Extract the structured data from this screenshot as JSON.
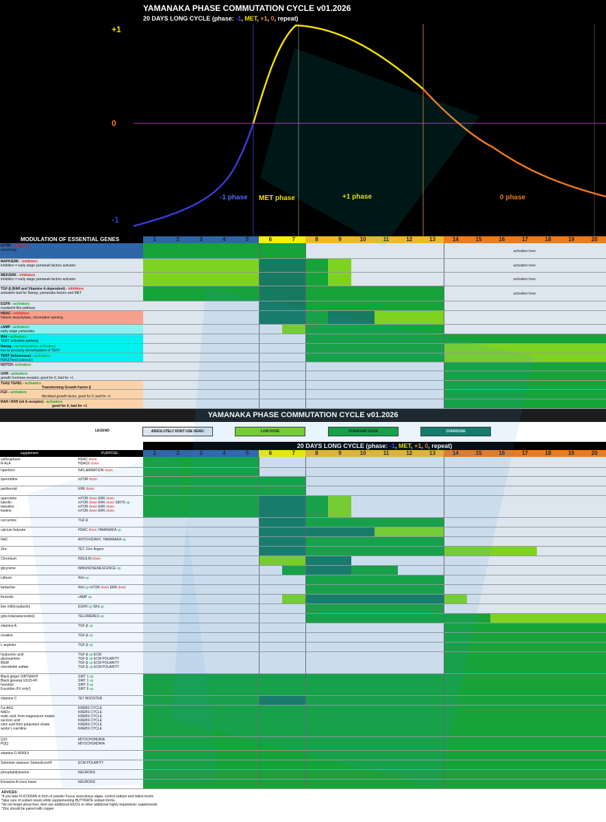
{
  "chart": {
    "title": "YAMANAKA PHASE COMMUTATION CYCLE v01.2026",
    "subtitle_pre": "20 DAYS LONG CYCLE (phase: ",
    "subtitle_p1": "-1",
    "subtitle_sep1": ", ",
    "subtitle_p2": "MET",
    "subtitle_sep2": ", ",
    "subtitle_p3": "+1",
    "subtitle_sep3": ", ",
    "subtitle_p4": "0",
    "subtitle_post": ", repeat)",
    "y_top": "+1",
    "y_mid": "0",
    "y_bottom": "-1",
    "phase_minus": "-1 phase",
    "phase_met": "MET phase",
    "phase_plus": "+1 phase",
    "phase_zero": "0 phase",
    "colors": {
      "minus": "#3b3bd6",
      "met": "#f6e000",
      "plus": "#f2a020",
      "zero": "#f07820"
    }
  },
  "genes": {
    "header": "MODULATION OF ESSENTIAL GENES",
    "days": [
      "1",
      "2",
      "3",
      "4",
      "5",
      "6",
      "7",
      "8",
      "9",
      "10",
      "11",
      "12",
      "13",
      "14",
      "15",
      "16",
      "17",
      "18",
      "19",
      "20"
    ],
    "rows": [
      {
        "n1": "mTOR - ",
        "n2": "inhibitors",
        "c": "r",
        "desc": "autophagy",
        "bg": "#2e66a8",
        "note": "activation here"
      },
      {
        "n1": "MAPK/ERK - ",
        "n2": "inhibitors",
        "c": "r",
        "desc": "inhibition = early stage yamanaki factors activator",
        "bg": "#dde6ee",
        "note": "activation here"
      },
      {
        "n1": "MEK/ERK - ",
        "n2": "inhibitors",
        "c": "r",
        "desc": "inhibition = early stage yamanaki factors activator",
        "bg": "#dde6ee",
        "note": "activation here"
      },
      {
        "n1": "TGF-β (RAR and Vitamine A dependent) - ",
        "n2": "inhibitors",
        "c": "r",
        "desc": "activation bad for Nanog, yamanaka factors and MET",
        "bg": "#dde6ee",
        "note": "activation here"
      },
      {
        "n1": "EGFR - ",
        "n2": "activators",
        "c": "g",
        "desc": "royalactin-like pathway",
        "bg": "#dde6ee",
        "note": ""
      },
      {
        "n1": "HDAC - ",
        "n2": "inhibitors",
        "c": "r",
        "desc": "histone deacetylase, chromatine opening",
        "bg": "#f7a08c",
        "note": ""
      },
      {
        "n1": "cAMP - ",
        "n2": "activators",
        "c": "g",
        "desc": "early stage yamanaka",
        "bg": "#8ef0f0",
        "note": ""
      },
      {
        "n1": "Wnt - ",
        "n2": "activators",
        "c": "g",
        "desc": "TERT activation pathway",
        "bg": "#00f0f0",
        "note": ""
      },
      {
        "n1": "Nanog - ",
        "n2": "demethylation, activators",
        "c": "g",
        "desc": "key to precisely demethylation of TERT",
        "bg": "#00f0f0",
        "note": ""
      },
      {
        "n1": "TERT (telomerase) - ",
        "n2": "activators",
        "c": "g",
        "desc": "H3K27me3 (silencer)",
        "bg": "#00f0f0",
        "note": ""
      },
      {
        "n1": "NOTCH- ",
        "n2": "activators",
        "c": "g",
        "desc": "",
        "bg": "#dde6ee",
        "note": ""
      },
      {
        "n1": "GHR - ",
        "n2": "activators",
        "c": "g",
        "desc": "growth hormone receptor, good for 0, bad for +1",
        "bg": "#dde6ee",
        "note": ""
      },
      {
        "n1": "TGFβ TGFB1 - ",
        "n2": "activators",
        "c": "g",
        "desc": "Transforming Growth Factor β",
        "bg": "#fcd3a8",
        "note": ""
      },
      {
        "n1": "FGF - ",
        "n2": "activators",
        "c": "g",
        "desc": "fibroblast growth factor, good for 0, bad for +1",
        "bg": "#fcd3a8",
        "note": ""
      },
      {
        "n1": "RAR i RXR (vit A receptor) - ",
        "n2": "activators",
        "c": "g",
        "desc": "good for 0, bad for +1",
        "bg": "#fcd3a8",
        "note": ""
      }
    ]
  },
  "section2": {
    "title": "YAMANAKA PHASE COMMUTATION CYCLE v01.2026",
    "legend_label": "LEGEND",
    "legend": [
      "ABSOLUTELY DONT USE HERE!",
      "LOW DOSE",
      "STANDARD DOSE",
      "OVERDOSE"
    ],
    "legend_colors": [
      "#dde6ee",
      "#7ed321",
      "#16a33a",
      "#167a60"
    ],
    "cycle_pre": "20 DAYS LONG CYCLE (phase: ",
    "cycle_p1": "-1",
    "cycle_p2": "MET",
    "cycle_p3": "+1",
    "cycle_p4": "0",
    "cycle_post": ", repeat)",
    "col_supp": "supplement",
    "col_purp": "PURPOSE",
    "supplements": [
      {
        "names": [
          "sulforaphane",
          "R-ALA"
        ],
        "purp": [
          [
            [
              "HDAC ",
              ""
            ],
            [
              "down",
              "r"
            ]
          ],
          [
            [
              "HDAC6 ",
              ""
            ],
            [
              "down",
              "r"
            ]
          ]
        ]
      },
      {
        "names": [
          "hiperforin"
        ],
        "purp": [
          [
            [
              "INFLAMMATION ",
              ""
            ],
            [
              "down",
              "r"
            ]
          ]
        ]
      },
      {
        "names": [
          "spermidine"
        ],
        "purp": [
          [
            [
              "mTOR ",
              ""
            ],
            [
              "down",
              "r"
            ]
          ]
        ]
      },
      {
        "names": [
          "parthenoid"
        ],
        "purp": [
          [
            [
              "ERK ",
              ""
            ],
            [
              "down",
              "r"
            ]
          ]
        ]
      },
      {
        "names": [
          "quercetine",
          "luteolin",
          "baicaline",
          "fisetine"
        ],
        "purp": [
          [
            [
              "mTOR ",
              ""
            ],
            [
              "down",
              "r"
            ],
            [
              " ERK ",
              ""
            ],
            [
              "down",
              "r"
            ]
          ],
          [
            [
              "mTOR ",
              ""
            ],
            [
              "down",
              "r"
            ],
            [
              " ERK ",
              ""
            ],
            [
              "down",
              "r"
            ],
            [
              " SIRT6 ",
              ""
            ],
            [
              "up",
              "g"
            ]
          ],
          [
            [
              "mTOR ",
              ""
            ],
            [
              "down",
              "r"
            ],
            [
              " ERK ",
              ""
            ],
            [
              "down",
              "r"
            ]
          ],
          [
            [
              "mTOR ",
              ""
            ],
            [
              "down",
              "r"
            ],
            [
              " ERK ",
              ""
            ],
            [
              "down",
              "r"
            ]
          ]
        ]
      },
      {
        "names": [
          "curcumine"
        ],
        "purp": [
          [
            [
              "TGF-β",
              ""
            ]
          ]
        ]
      },
      {
        "names": [
          "calcium butyrate"
        ],
        "purp": [
          [
            [
              "HDAC ",
              ""
            ],
            [
              "down",
              "r"
            ],
            [
              " YAMANAKA ",
              ""
            ],
            [
              "up",
              "g"
            ]
          ]
        ]
      },
      {
        "names": [
          "NAC"
        ],
        "purp": [
          [
            [
              "ANTIOXIDANT, YAMANAKA ",
              ""
            ],
            [
              "up",
              "g"
            ]
          ]
        ]
      },
      {
        "names": [
          "Zinc"
        ],
        "purp": [
          [
            [
              "TET, Zinc fingers",
              ""
            ]
          ]
        ]
      },
      {
        "names": [
          "Chromium"
        ],
        "purp": [
          [
            [
              "INSULIN ",
              ""
            ],
            [
              "down",
              "r"
            ]
          ]
        ]
      },
      {
        "names": [
          "glicyrizine"
        ],
        "purp": [
          [
            [
              "IMMUNOSENESCENCE ",
              ""
            ],
            [
              "up",
              "g"
            ]
          ]
        ]
      },
      {
        "names": [
          "Lithium"
        ],
        "purp": [
          [
            [
              "Wnt ",
              ""
            ],
            [
              "up",
              "g"
            ]
          ]
        ]
      },
      {
        "names": [
          "berberine"
        ],
        "purp": [
          [
            [
              "Wnt ",
              ""
            ],
            [
              "up",
              "g"
            ],
            [
              " mTOR ",
              ""
            ],
            [
              "down",
              "r"
            ],
            [
              " ERK ",
              ""
            ],
            [
              "down",
              "r"
            ]
          ]
        ]
      },
      {
        "names": [
          "forskolin"
        ],
        "purp": [
          [
            [
              "cAMP ",
              ""
            ],
            [
              "up",
              "g"
            ]
          ]
        ]
      },
      {
        "names": [
          "bee milk(royalactin)"
        ],
        "purp": [
          [
            [
              "EGFR ",
              ""
            ],
            [
              "up",
              "g"
            ],
            [
              " Wnt ",
              ""
            ],
            [
              "up",
              "g"
            ]
          ]
        ]
      },
      {
        "names": [
          "gotu kola(asiacosides)"
        ],
        "purp": [
          [
            [
              "TELOMERES ",
              ""
            ],
            [
              "up",
              "g"
            ]
          ]
        ]
      },
      {
        "names": [
          "vitamine A"
        ],
        "purp": [
          [
            [
              "TGF-β ",
              ""
            ],
            [
              "up",
              "g"
            ]
          ]
        ]
      },
      {
        "names": [
          "creatine"
        ],
        "purp": [
          [
            [
              "TGF-β ",
              ""
            ],
            [
              "up",
              "g"
            ]
          ]
        ]
      },
      {
        "names": [
          "L-arginine"
        ],
        "purp": [
          [
            [
              "TGF-β ",
              ""
            ],
            [
              "up",
              "g"
            ]
          ]
        ]
      },
      {
        "names": [
          "hyaluronic acid",
          "glucosamine",
          "MSM",
          "chondroitin sulfate"
        ],
        "purp": [
          [
            [
              "TGF-β ",
              ""
            ],
            [
              "up",
              "g"
            ],
            [
              " ECM",
              ""
            ]
          ],
          [
            [
              "TGF-β ",
              ""
            ],
            [
              "up",
              "g"
            ],
            [
              " ECM POLARITY",
              ""
            ]
          ],
          [
            [
              "TGF-β ",
              ""
            ],
            [
              "up",
              "g"
            ],
            [
              " ECM POLARITY",
              ""
            ]
          ],
          [
            [
              "TGF-β ",
              ""
            ],
            [
              "up",
              "g"
            ],
            [
              " ECM POLARITY",
              ""
            ]
          ]
        ]
      },
      {
        "names": [
          "Black ginger SIRTMAX®",
          "Black ginseng GS15-4®",
          "honokiol",
          "Fucoidan (FV only!)"
        ],
        "purp": [
          [
            [
              "SIRT 1 ",
              ""
            ],
            [
              "up",
              "g"
            ]
          ],
          [
            [
              "SIRT 1 ",
              ""
            ],
            [
              "up",
              "g"
            ]
          ],
          [
            [
              "SIRT 3 ",
              ""
            ],
            [
              "up",
              "g"
            ]
          ],
          [
            [
              "SIRT 6 ",
              ""
            ],
            [
              "up",
              "g"
            ]
          ]
        ]
      },
      {
        "names": [
          "vitamine C"
        ],
        "purp": [
          [
            [
              "TET BOOSTER",
              ""
            ]
          ]
        ]
      },
      {
        "names": [
          "Ca-AKG",
          "NAD+",
          "malic acid: from magnesium malate",
          "succinic acid",
          "citric acid from potassium citrate",
          "acetyl L-carnitine"
        ],
        "purp": [
          [
            [
              "KREBS CYCLE",
              ""
            ]
          ],
          [
            [
              "KREBS CYCLE",
              ""
            ]
          ],
          [
            [
              "KREBS CYCLE",
              ""
            ]
          ],
          [
            [
              "KREBS CYCLE",
              ""
            ]
          ],
          [
            [
              "KREBS CYCLE",
              ""
            ]
          ],
          [
            [
              "KREBS CYCLE",
              ""
            ]
          ]
        ]
      },
      {
        "names": [
          "Q10",
          "PQQ"
        ],
        "purp": [
          [
            [
              "MITOCHONDRIA",
              ""
            ]
          ],
          [
            [
              "MITOCHONDRIA",
              ""
            ]
          ]
        ]
      },
      {
        "names": [
          "vitamine D 4000UI"
        ],
        "purp": []
      },
      {
        "names": [
          "Selenium swanson SelenoExcel®"
        ],
        "purp": [
          [
            [
              "ECM POLARITY",
              ""
            ]
          ]
        ]
      },
      {
        "names": [
          "phosphatidylserine"
        ],
        "purp": [
          [
            [
              "NEURONS",
              ""
            ]
          ]
        ]
      },
      {
        "names": [
          "Erinacine A Lions mane"
        ],
        "purp": [
          [
            [
              "NEURONS",
              ""
            ]
          ]
        ]
      }
    ],
    "advices_title": "ADVICES:",
    "advices": [
      "*if you take FUCOIDAN in form of powder Fucus vesiculosus algae, control sodium and iodine levels",
      "*take care of sodium levels while supplementing BUTYRATE sodium forms",
      "*do not forget about liver, dont use additional EGCG or other additional highly hepatotoxic supplements",
      "*Zinc should be paired with copper"
    ]
  }
}
